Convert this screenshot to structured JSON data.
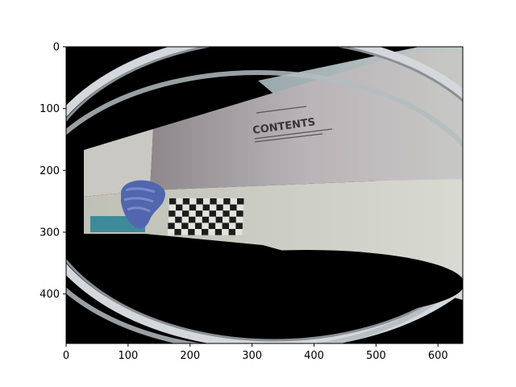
{
  "figure": {
    "x_ticks": [
      "0",
      "100",
      "200",
      "300",
      "400",
      "500",
      "600"
    ],
    "y_ticks": [
      "0",
      "100",
      "200",
      "300",
      "400"
    ]
  },
  "photo": {
    "description_colors": {
      "background": "#000000",
      "ring": "#c8ccd0",
      "box_top": "#b8b4b6",
      "box_front": "#cfd0c8",
      "glove": "#4a5fa0",
      "checker_dark": "#1a1a1a",
      "checker_light": "#e6e6e0",
      "wall": "#a8b4b8"
    },
    "box_text": "CONTENTS"
  }
}
